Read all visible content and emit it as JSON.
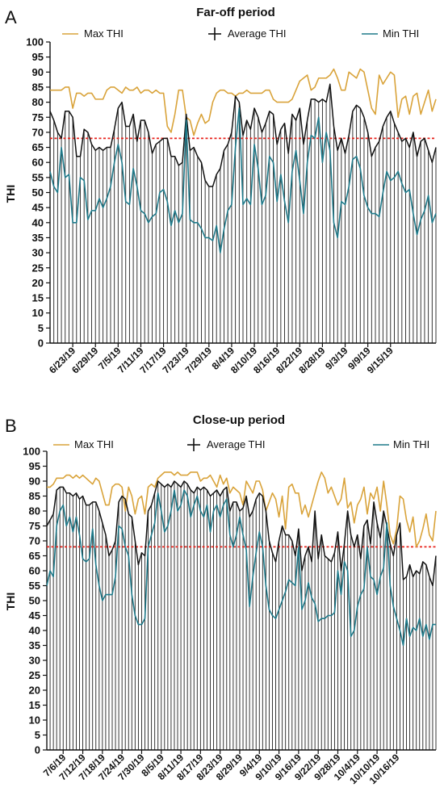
{
  "chart_data": [
    {
      "type": "line",
      "panel_label": "A",
      "title": "Far-off period",
      "ylabel": "THI",
      "xlabel": "",
      "ylim": [
        0,
        100
      ],
      "yticks": [
        0,
        5,
        10,
        15,
        20,
        25,
        30,
        35,
        40,
        45,
        50,
        55,
        60,
        65,
        70,
        75,
        80,
        85,
        90,
        95,
        100
      ],
      "xtick_labels": [
        "6/23/19",
        "6/29/19",
        "7/5/19",
        "7/11/19",
        "7/17/19",
        "7/23/19",
        "7/29/19",
        "8/4/19",
        "8/10/19",
        "8/16/19",
        "8/22/19",
        "8/28/19",
        "9/3/19",
        "9/9/19",
        "9/15/19"
      ],
      "x_start_date": "6/17/19",
      "threshold": {
        "value": 68,
        "color": "#e8221b"
      },
      "legend": [
        "Max THI",
        "Average THI",
        "Min THI"
      ],
      "legend_position": "top",
      "colors": {
        "max": "#d9a33a",
        "avg": "#111111",
        "min": "#1f7a8a",
        "threshold": "#e8221b"
      },
      "series": [
        {
          "name": "Max THI",
          "key": "max",
          "values": [
            84,
            84,
            84,
            84,
            85,
            85,
            78,
            83,
            83,
            82,
            83,
            83,
            81,
            81,
            81,
            84,
            85,
            85,
            84,
            83,
            85,
            84,
            84,
            85,
            83,
            84,
            84,
            83,
            84,
            83,
            83,
            72,
            70,
            76,
            84,
            84,
            75,
            74,
            69,
            73,
            76,
            73,
            74,
            80,
            83,
            84,
            84,
            83,
            83,
            82,
            83,
            83,
            84,
            83,
            83,
            83,
            83,
            84,
            84,
            81,
            80,
            80,
            80,
            80,
            81,
            84,
            87,
            88,
            89,
            84,
            85,
            88,
            88,
            88,
            89,
            91,
            88,
            84,
            84,
            90,
            89,
            88,
            91,
            90,
            84,
            78,
            76,
            89,
            86,
            88,
            90,
            89,
            75,
            81,
            82,
            76,
            82,
            83,
            76,
            80,
            84,
            77,
            81
          ]
        },
        {
          "name": "Average THI",
          "key": "avg",
          "values": [
            77,
            74,
            70,
            68,
            77,
            77,
            75,
            62,
            62,
            71,
            70,
            66,
            64,
            65,
            64,
            65,
            65,
            71,
            78,
            80,
            72,
            72,
            76,
            67,
            74,
            74,
            70,
            63,
            66,
            67,
            68,
            68,
            62,
            62,
            59,
            60,
            76,
            64,
            65,
            62,
            60,
            54,
            52,
            52,
            56,
            58,
            64,
            66,
            70,
            82,
            80,
            69,
            74,
            71,
            78,
            75,
            70,
            73,
            77,
            76,
            66,
            71,
            73,
            63,
            76,
            74,
            78,
            66,
            74,
            81,
            81,
            80,
            81,
            80,
            86,
            72,
            64,
            68,
            63,
            69,
            77,
            79,
            78,
            75,
            70,
            62,
            65,
            67,
            72,
            75,
            77,
            73,
            70,
            67,
            68,
            65,
            70,
            62,
            67,
            68,
            64,
            60,
            65
          ]
        },
        {
          "name": "Min THI",
          "key": "min",
          "values": [
            57,
            52,
            50,
            65,
            55,
            56,
            40,
            40,
            55,
            54,
            41,
            44,
            44,
            48,
            45,
            48,
            52,
            60,
            66,
            60,
            47,
            46,
            58,
            52,
            44,
            43,
            40,
            42,
            43,
            50,
            51,
            47,
            39,
            44,
            40,
            43,
            74,
            41,
            40,
            40,
            38,
            35,
            35,
            34,
            39,
            30,
            38,
            44,
            46,
            65,
            78,
            46,
            48,
            46,
            66,
            58,
            46,
            49,
            62,
            60,
            47,
            56,
            47,
            40,
            57,
            64,
            54,
            43,
            60,
            69,
            68,
            75,
            60,
            70,
            64,
            40,
            35,
            47,
            46,
            52,
            61,
            62,
            58,
            49,
            45,
            43,
            43,
            42,
            50,
            57,
            54,
            55,
            57,
            53,
            50,
            51,
            43,
            36,
            41,
            44,
            49,
            40,
            43
          ]
        }
      ]
    },
    {
      "type": "line",
      "panel_label": "B",
      "title": "Close-up period",
      "ylabel": "THI",
      "xlabel": "",
      "ylim": [
        0,
        100
      ],
      "yticks": [
        0,
        5,
        10,
        15,
        20,
        25,
        30,
        35,
        40,
        45,
        50,
        55,
        60,
        65,
        70,
        75,
        80,
        85,
        90,
        95,
        100
      ],
      "xtick_labels": [
        "7/6/19",
        "7/12/19",
        "7/18/19",
        "7/24/19",
        "7/30/19",
        "8/5/19",
        "8/11/19",
        "8/17/19",
        "8/23/19",
        "8/29/19",
        "9/4/19",
        "9/10/19",
        "9/16/19",
        "9/22/19",
        "9/28/19",
        "10/4/19",
        "10/10/19",
        "10/16/19"
      ],
      "x_start_date": "7/1/19",
      "threshold": {
        "value": 68,
        "color": "#e8221b"
      },
      "legend": [
        "Max THI",
        "Average THI",
        "Min THI"
      ],
      "legend_position": "top",
      "colors": {
        "max": "#d9a33a",
        "avg": "#111111",
        "min": "#1f7a8a",
        "threshold": "#e8221b"
      },
      "series": [
        {
          "name": "Max THI",
          "key": "max",
          "values": [
            88,
            88,
            89,
            91,
            91,
            91,
            92,
            92,
            91,
            92,
            91,
            92,
            91,
            90,
            89,
            91,
            90,
            86,
            82,
            82,
            88,
            89,
            89,
            88,
            80,
            88,
            85,
            79,
            84,
            85,
            79,
            88,
            89,
            88,
            91,
            92,
            93,
            93,
            93,
            92,
            93,
            92,
            92,
            92,
            93,
            93,
            93,
            90,
            91,
            91,
            92,
            90,
            88,
            92,
            89,
            91,
            86,
            88,
            87,
            86,
            82,
            90,
            88,
            86,
            90,
            90,
            87,
            80,
            83,
            86,
            84,
            78,
            85,
            74,
            88,
            89,
            86,
            86,
            79,
            82,
            78,
            82,
            86,
            90,
            93,
            91,
            86,
            88,
            85,
            82,
            84,
            91,
            81,
            83,
            76,
            82,
            84,
            88,
            79,
            86,
            84,
            88,
            80,
            90,
            82,
            72,
            69,
            74,
            85,
            84,
            77,
            73,
            78,
            68,
            70,
            74,
            79,
            72,
            70,
            80
          ]
        },
        {
          "name": "Average THI",
          "key": "avg",
          "values": [
            75,
            77,
            79,
            87,
            88,
            88,
            86,
            86,
            85,
            86,
            84,
            85,
            82,
            82,
            83,
            83,
            80,
            76,
            72,
            65,
            67,
            70,
            83,
            85,
            84,
            79,
            78,
            70,
            62,
            66,
            65,
            80,
            82,
            86,
            90,
            89,
            88,
            89,
            88,
            90,
            89,
            88,
            90,
            89,
            87,
            86,
            88,
            87,
            88,
            87,
            85,
            86,
            87,
            85,
            87,
            88,
            80,
            83,
            83,
            80,
            81,
            85,
            78,
            80,
            84,
            86,
            85,
            80,
            70,
            66,
            63,
            70,
            75,
            72,
            72,
            70,
            65,
            74,
            60,
            65,
            68,
            63,
            80,
            64,
            72,
            65,
            64,
            63,
            66,
            73,
            60,
            69,
            80,
            72,
            68,
            72,
            64,
            75,
            77,
            69,
            83,
            76,
            71,
            80,
            75,
            69,
            65,
            72,
            76,
            57,
            58,
            62,
            58,
            60,
            59,
            63,
            62,
            58,
            55,
            65
          ]
        },
        {
          "name": "Min THI",
          "key": "min",
          "values": [
            55,
            60,
            58,
            75,
            80,
            82,
            75,
            78,
            73,
            78,
            72,
            64,
            63,
            64,
            74,
            62,
            55,
            50,
            52,
            52,
            52,
            58,
            75,
            74,
            68,
            65,
            52,
            45,
            42,
            42,
            44,
            68,
            72,
            76,
            86,
            80,
            73,
            75,
            80,
            87,
            80,
            82,
            87,
            85,
            78,
            82,
            85,
            80,
            78,
            82,
            73,
            80,
            82,
            78,
            82,
            84,
            72,
            68,
            72,
            78,
            72,
            67,
            48,
            58,
            66,
            73,
            68,
            55,
            47,
            45,
            44,
            47,
            50,
            53,
            57,
            56,
            55,
            68,
            47,
            50,
            56,
            51,
            49,
            43,
            44,
            44,
            45,
            45,
            46,
            60,
            52,
            63,
            60,
            38,
            40,
            48,
            52,
            54,
            68,
            58,
            57,
            52,
            58,
            61,
            76,
            55,
            48,
            44,
            40,
            35,
            44,
            38,
            41,
            40,
            44,
            38,
            42,
            37,
            42,
            42
          ]
        }
      ]
    }
  ]
}
